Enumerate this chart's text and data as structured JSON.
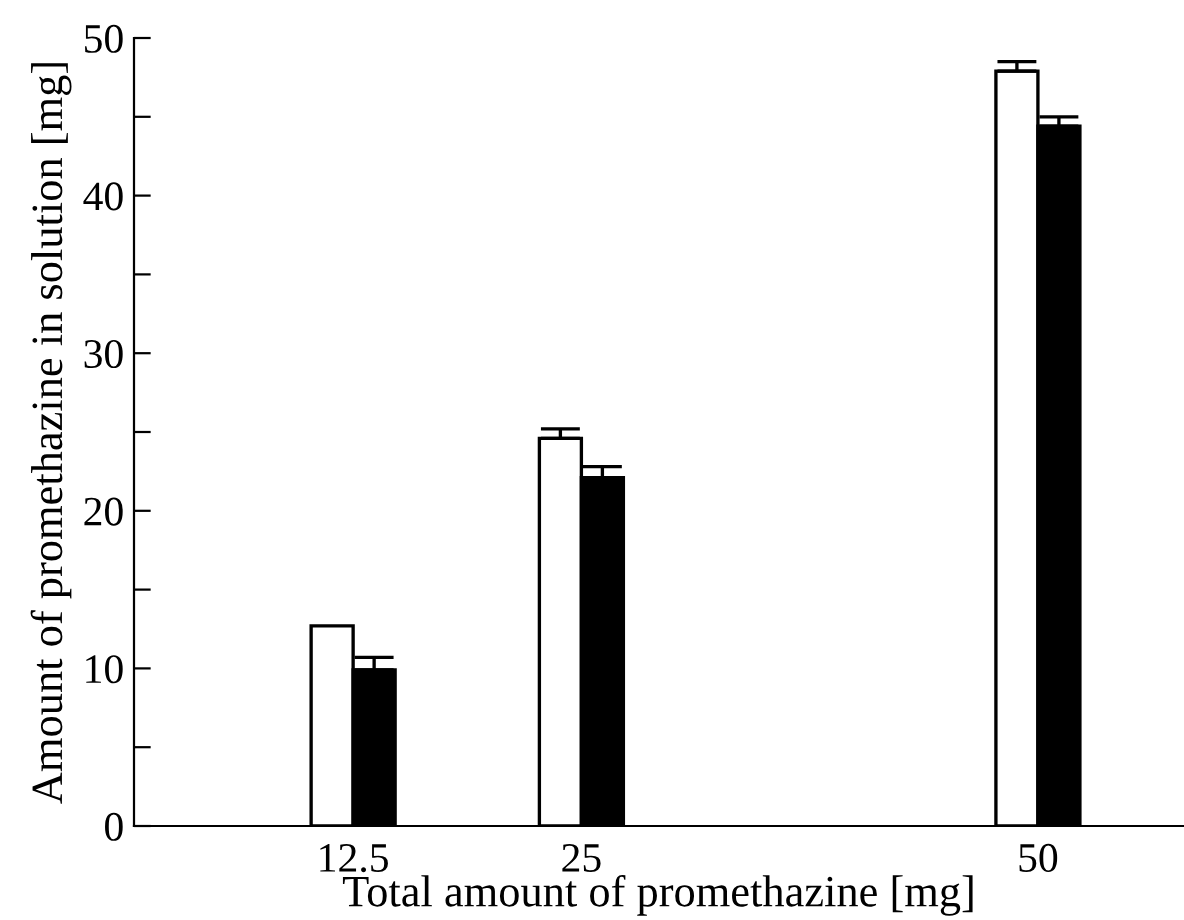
{
  "chart_data": {
    "type": "bar",
    "xlabel": "Total amount of promethazine [mg]",
    "ylabel": "Amount of promethazine in solution [mg]",
    "x": [
      12.5,
      25,
      50
    ],
    "series": [
      {
        "color": "#ffffff",
        "values": [
          12.7,
          24.6,
          47.9
        ],
        "errors": [
          null,
          [
            24.6,
            25.2
          ],
          [
            47.9,
            48.5
          ]
        ]
      },
      {
        "color": "#000000",
        "values": [
          9.9,
          22.1,
          44.4
        ],
        "errors": [
          [
            9.9,
            10.7
          ],
          [
            22.1,
            22.8
          ],
          [
            44.4,
            45.0
          ]
        ]
      }
    ],
    "xlim": [
      0.5,
      58
    ],
    "xticks": [
      12.5,
      25,
      50
    ],
    "ylim": [
      0,
      50
    ],
    "yticks": [
      0,
      {
        "value": 5,
        "label": null
      },
      10,
      {
        "value": 15,
        "label": null
      },
      20,
      {
        "value": 25,
        "label": null
      },
      30,
      {
        "value": 35,
        "label": null
      },
      40,
      {
        "value": 45,
        "label": null
      },
      50
    ],
    "grid": false,
    "legend": false
  }
}
